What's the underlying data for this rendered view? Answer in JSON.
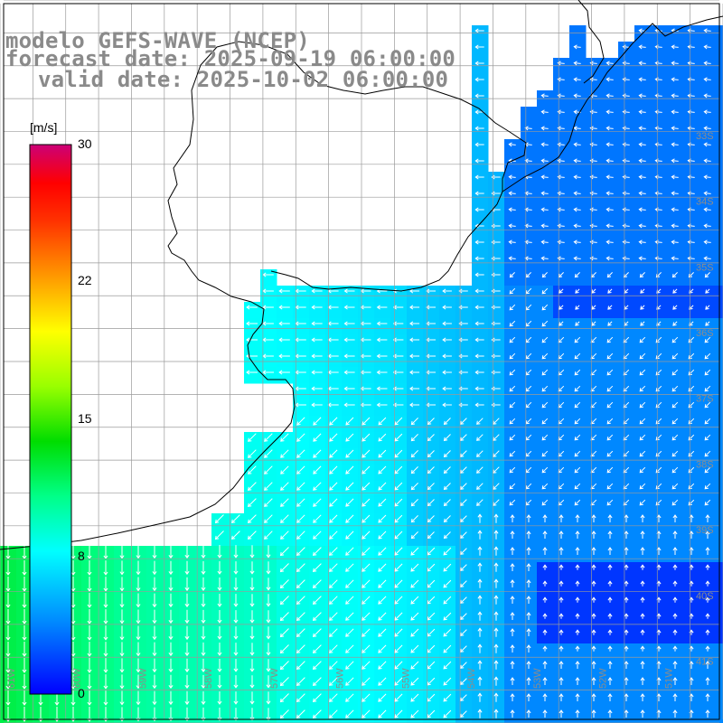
{
  "title": {
    "line1": "modelo GEFS-WAVE (NCEP)",
    "line2": "forecast date: 2025-09-19 06:00:00",
    "line3": "valid date: 2025-10-02 06:00:00"
  },
  "colorbar": {
    "unit": "[m/s]",
    "ticks": [
      {
        "label": "30",
        "value": 30
      },
      {
        "label": "22",
        "value": 22
      },
      {
        "label": "15",
        "value": 15
      },
      {
        "label": "8",
        "value": 8
      },
      {
        "label": "0",
        "value": 0
      }
    ],
    "range": [
      0,
      30
    ],
    "palette": [
      "#0000ff",
      "#0088ff",
      "#00ffff",
      "#00ff88",
      "#00dd00",
      "#99ff00",
      "#ffff00",
      "#ff9900",
      "#ff3300",
      "#ff0000",
      "#cc0077"
    ]
  },
  "map": {
    "lon_range": [
      -61,
      -50
    ],
    "lat_range": [
      -41.5,
      -30.5
    ],
    "lat_labels": [
      {
        "label": "33S",
        "lat": -33
      },
      {
        "label": "34S",
        "lat": -34
      },
      {
        "label": "35S",
        "lat": -35
      },
      {
        "label": "36S",
        "lat": -36
      },
      {
        "label": "37S",
        "lat": -37
      },
      {
        "label": "38S",
        "lat": -38
      },
      {
        "label": "39S",
        "lat": -39
      },
      {
        "label": "40S",
        "lat": -40
      },
      {
        "label": "41S",
        "lat": -41
      }
    ],
    "lon_labels": [
      {
        "label": "61W",
        "lon": -61
      },
      {
        "label": "60W",
        "lon": -60
      },
      {
        "label": "59W",
        "lon": -59
      },
      {
        "label": "58W",
        "lon": -58
      },
      {
        "label": "57W",
        "lon": -57
      },
      {
        "label": "56W",
        "lon": -56
      },
      {
        "label": "55W",
        "lon": -55
      },
      {
        "label": "54W",
        "lon": -54
      },
      {
        "label": "53W",
        "lon": -53
      },
      {
        "label": "52W",
        "lon": -52
      },
      {
        "label": "51W",
        "lon": -51
      }
    ],
    "field": "wind speed and direction over ocean"
  }
}
